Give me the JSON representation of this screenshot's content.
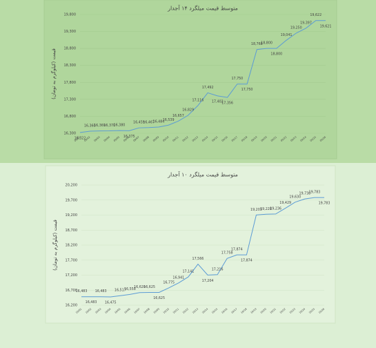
{
  "chart_data": [
    {
      "type": "line",
      "title": "متوسط قیمت میلگرد ۱۴ آجدار",
      "y_label": "قیمت (کیلوگرم به تومان)",
      "categories": [
        "09/01",
        "09/02",
        "09/03",
        "09/04",
        "09/05",
        "09/06",
        "09/07",
        "09/08",
        "09/09",
        "09/10",
        "09/11",
        "09/12",
        "09/13",
        "09/14",
        "09/15",
        "09/16",
        "09/17",
        "09/18",
        "09/19",
        "09/20",
        "09/21",
        "09/22",
        "09/23",
        "09/24",
        "09/25",
        "09/26"
      ],
      "series": [
        {
          "name": "متوسط قیمت میلگرد ۱۴ آجدار",
          "color": "#5b9bd5",
          "values": [
            16322,
            16360,
            16369,
            16370,
            16380,
            16375,
            16459,
            16467,
            16484,
            16539,
            16657,
            16829,
            17116,
            17492,
            17402,
            17356,
            17750,
            17750,
            18768,
            18800,
            18800,
            19041,
            19250,
            19397,
            19622,
            19621
          ],
          "value_labels": [
            "16,322",
            "16,360",
            "16,369",
            "16,370",
            "16,380",
            "16,375",
            "16,459",
            "16,467",
            "16,484",
            "16,539",
            "16,657",
            "16,829",
            "17,116",
            "17,492",
            "17,402",
            "17,356",
            "17,750",
            "17,750",
            "18,768",
            "18,800",
            "18,800",
            "19,041",
            "19,250",
            "19,397",
            "19,622",
            "19,621"
          ]
        }
      ],
      "ylim": [
        16300,
        19800
      ],
      "yticks": [
        {
          "value": 16300,
          "label": "16,300"
        },
        {
          "value": 16800,
          "label": "16,800"
        },
        {
          "value": 17300,
          "label": "17,300"
        },
        {
          "value": 17800,
          "label": "17,800"
        },
        {
          "value": 18300,
          "label": "18,300"
        },
        {
          "value": 18800,
          "label": "18,800"
        },
        {
          "value": 19300,
          "label": "19,300"
        },
        {
          "value": 19800,
          "label": "19,800"
        }
      ],
      "grid": true
    },
    {
      "type": "line",
      "title": "متوسط قیمت میلگرد ۱۰ آجدار",
      "y_label": "قیمت (کیلوگرم به تومان)",
      "categories": [
        "10/01",
        "10/02",
        "10/03",
        "10/04",
        "10/05",
        "10/06",
        "10/07",
        "10/08",
        "10/09",
        "10/10",
        "10/11",
        "10/12",
        "10/13",
        "10/14",
        "10/15",
        "10/16",
        "10/17",
        "10/18",
        "10/19",
        "10/20",
        "10/21",
        "10/22",
        "10/23",
        "10/24",
        "10/25",
        "10/26"
      ],
      "series": [
        {
          "name": "متوسط قیمت میلگرد ۱۰ آجدار",
          "color": "#5b9bd5",
          "values": [
            16483,
            16483,
            16483,
            16475,
            16517,
            16558,
            16620,
            16625,
            16625,
            16775,
            16941,
            17141,
            17566,
            17204,
            17216,
            17758,
            17874,
            17874,
            19203,
            19228,
            19236,
            19429,
            19630,
            19738,
            19783,
            19783
          ],
          "value_labels": [
            "16,483",
            "16,483",
            "16,483",
            "16,475",
            "16,517",
            "16,558",
            "16,620",
            "16,625",
            "16,625",
            "16,775",
            "16,941",
            "17,141",
            "17,566",
            "17,204",
            "17,216",
            "17,758",
            "17,874",
            "17,874",
            "19,203",
            "19,228",
            "19,236",
            "19,429",
            "19,630",
            "19,738",
            "19,783",
            "19,783"
          ]
        }
      ],
      "ylim": [
        16200,
        20200
      ],
      "yticks": [
        {
          "value": 16200,
          "label": "16,200"
        },
        {
          "value": 16700,
          "label": "16,700"
        },
        {
          "value": 17200,
          "label": "17,200"
        },
        {
          "value": 17700,
          "label": "17,700"
        },
        {
          "value": 18200,
          "label": "18,200"
        },
        {
          "value": 18700,
          "label": "18,700"
        },
        {
          "value": 19200,
          "label": "19,200"
        },
        {
          "value": 19700,
          "label": "19,700"
        },
        {
          "value": 20200,
          "label": "20,200"
        }
      ],
      "grid": true
    }
  ]
}
